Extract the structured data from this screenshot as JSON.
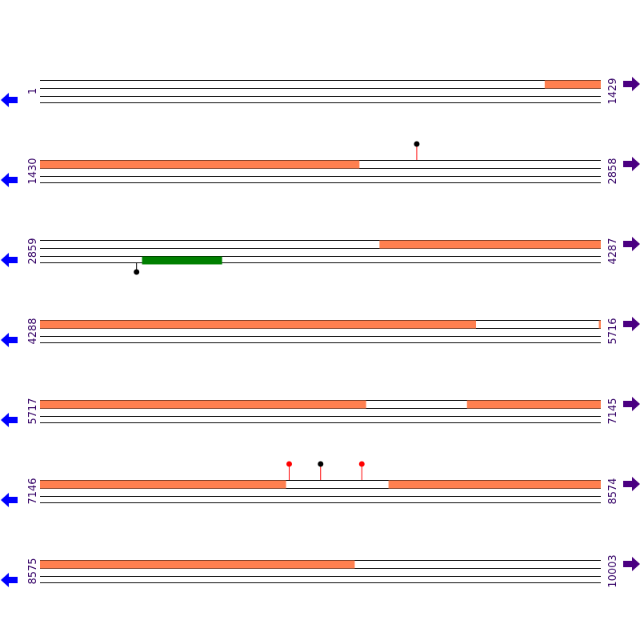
{
  "colors": {
    "feature_orange": "#ff8050",
    "feature_green": "#008000",
    "line": "#000000",
    "label": "#330066",
    "arrow_left": "#0000ff",
    "arrow_right": "#4b0082",
    "stem": "#ff0000",
    "dot_black": "#000000",
    "dot_red": "#ff0000"
  },
  "icons": {
    "left": "left-arrow-icon",
    "right": "right-arrow-icon"
  },
  "rows": [
    {
      "start": "1",
      "end": "1429",
      "features": [
        {
          "strand": 0,
          "from": 1287,
          "to": 1429,
          "color": "orange"
        }
      ],
      "markers": []
    },
    {
      "start": "1430",
      "end": "2858",
      "features": [
        {
          "strand": 0,
          "from": 1430,
          "to": 2243,
          "color": "orange"
        }
      ],
      "markers": [
        {
          "pos": 2390,
          "side": "above",
          "dot": "black"
        }
      ]
    },
    {
      "start": "2859",
      "end": "4287",
      "features": [
        {
          "strand": 0,
          "from": 3724,
          "to": 4287,
          "color": "orange"
        },
        {
          "strand": 2,
          "from": 3119,
          "to": 3322,
          "color": "green"
        }
      ],
      "markers": [
        {
          "pos": 3105,
          "side": "below",
          "dot": "black"
        }
      ]
    },
    {
      "start": "4288",
      "end": "5716",
      "features": [
        {
          "strand": 0,
          "from": 4288,
          "to": 5398,
          "color": "orange"
        },
        {
          "strand": 0,
          "from": 5712,
          "to": 5716,
          "color": "orange"
        }
      ],
      "markers": []
    },
    {
      "start": "5717",
      "end": "7145",
      "features": [
        {
          "strand": 0,
          "from": 5717,
          "to": 6547,
          "color": "orange"
        },
        {
          "strand": 0,
          "from": 6805,
          "to": 7145,
          "color": "orange"
        }
      ],
      "markers": []
    },
    {
      "start": "7146",
      "end": "8574",
      "features": [
        {
          "strand": 0,
          "from": 7146,
          "to": 7772,
          "color": "orange"
        },
        {
          "strand": 0,
          "from": 8034,
          "to": 8574,
          "color": "orange"
        }
      ],
      "markers": [
        {
          "pos": 7781,
          "side": "above",
          "dot": "red"
        },
        {
          "pos": 7861,
          "side": "above",
          "dot": "black"
        },
        {
          "pos": 7966,
          "side": "above",
          "dot": "red"
        }
      ]
    },
    {
      "start": "8575",
      "end": "10003",
      "features": [
        {
          "strand": 0,
          "from": 8575,
          "to": 9376,
          "color": "orange"
        }
      ],
      "markers": []
    }
  ]
}
